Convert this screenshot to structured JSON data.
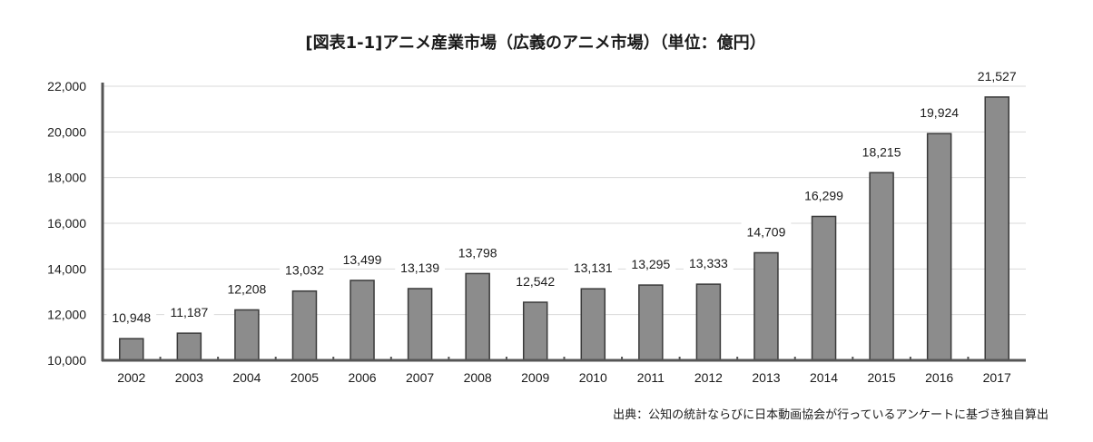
{
  "chart_data": {
    "type": "bar",
    "title": "[図表1-1]アニメ産業市場（広義のアニメ市場）（単位：億円）",
    "source": "出典：公知の統計ならびに日本動画協会が行っているアンケートに基づき独自算出",
    "categories": [
      "2002",
      "2003",
      "2004",
      "2005",
      "2006",
      "2007",
      "2008",
      "2009",
      "2010",
      "2011",
      "2012",
      "2013",
      "2014",
      "2015",
      "2016",
      "2017"
    ],
    "values": [
      10948,
      11187,
      12208,
      13032,
      13499,
      13139,
      13798,
      12542,
      13131,
      13295,
      13333,
      14709,
      16299,
      18215,
      19924,
      21527
    ],
    "value_labels": [
      "10,948",
      "11,187",
      "12,208",
      "13,032",
      "13,499",
      "13,139",
      "13,798",
      "12,542",
      "13,131",
      "13,295",
      "13,333",
      "14,709",
      "16,299",
      "18,215",
      "19,924",
      "21,527"
    ],
    "ylim": [
      10000,
      22000
    ],
    "yticks": [
      "10,000",
      "12,000",
      "14,000",
      "16,000",
      "18,000",
      "20,000",
      "22,000"
    ],
    "grid": true,
    "colors": {
      "bar": "#8c8c8c",
      "axis": "#555555",
      "grid": "#d9d9d9"
    }
  }
}
